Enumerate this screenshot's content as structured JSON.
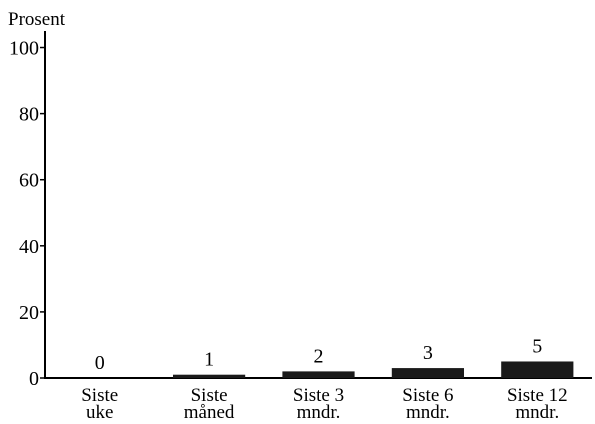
{
  "chart_data": {
    "type": "bar",
    "ylabel": "Prosent",
    "ylim": [
      0,
      105
    ],
    "yticks": [
      0,
      20,
      40,
      60,
      80,
      100
    ],
    "categories": [
      [
        "Siste",
        "uke"
      ],
      [
        "Siste",
        "måned"
      ],
      [
        "Siste 3",
        "mndr."
      ],
      [
        "Siste 6",
        "mndr."
      ],
      [
        "Siste 12",
        "mndr."
      ]
    ],
    "values": [
      0,
      1,
      2,
      3,
      5
    ],
    "data_labels": [
      "0",
      "1",
      "2",
      "3",
      "5"
    ],
    "bar_color": "#1a1a1a",
    "grid": false,
    "legend": "none"
  }
}
